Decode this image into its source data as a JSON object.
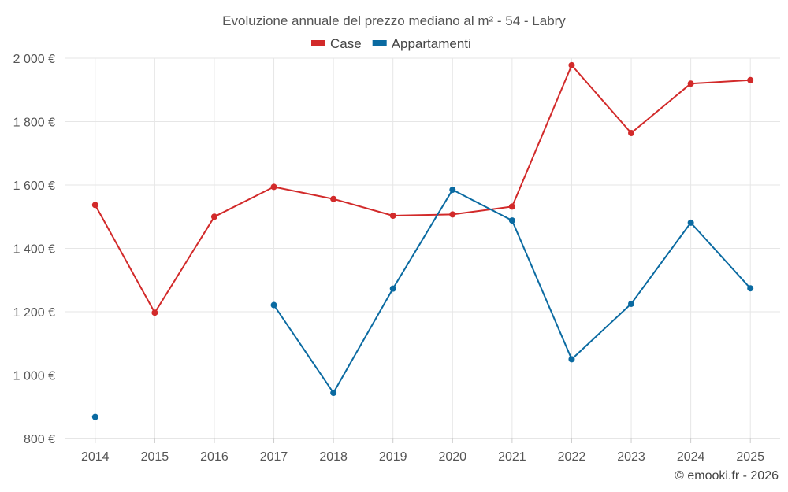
{
  "chart_data": {
    "type": "line",
    "title": "Evoluzione annuale del prezzo mediano al m² - 54 - Labry",
    "categories": [
      "2014",
      "2015",
      "2016",
      "2017",
      "2018",
      "2019",
      "2020",
      "2021",
      "2022",
      "2023",
      "2024",
      "2025"
    ],
    "series": [
      {
        "name": "Case",
        "color": "#d22a2a",
        "values": [
          1537,
          1197,
          1500,
          1594,
          1556,
          1503,
          1507,
          1532,
          1978,
          1764,
          1920,
          1931
        ]
      },
      {
        "name": "Appartamenti",
        "color": "#0a6aa1",
        "values": [
          868,
          null,
          null,
          1221,
          944,
          1273,
          1585,
          1488,
          1050,
          1225,
          1481,
          1274
        ]
      }
    ],
    "ylim": [
      800,
      2000
    ],
    "yticks": [
      800,
      1000,
      1200,
      1400,
      1600,
      1800,
      2000
    ],
    "ytick_labels": [
      "800 €",
      "1 000 €",
      "1 200 €",
      "1 400 €",
      "1 600 €",
      "1 800 €",
      "2 000 €"
    ],
    "xlabel": "",
    "ylabel": "",
    "legend": "top-center",
    "grid": true
  },
  "credit": "© emooki.fr - 2026"
}
